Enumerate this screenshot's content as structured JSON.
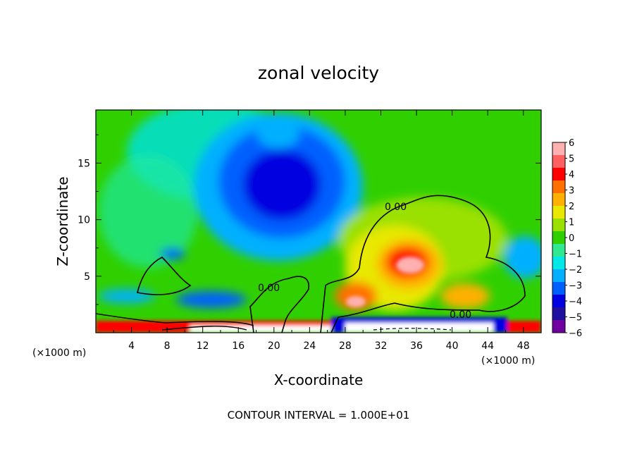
{
  "chart_data": {
    "type": "heatmap",
    "title": "zonal velocity",
    "xlabel": "X-coordinate",
    "ylabel": "Z-coordinate",
    "x_unit": "(×1000 m)",
    "y_unit": "(×1000 m)",
    "xlim": [
      0,
      50
    ],
    "ylim": [
      0,
      19.7
    ],
    "x_ticks": [
      4,
      8,
      12,
      16,
      20,
      24,
      28,
      32,
      36,
      40,
      44,
      48
    ],
    "y_ticks": [
      5,
      10,
      15
    ],
    "colorbar": {
      "levels": [
        6,
        5,
        4,
        3,
        2,
        1,
        0,
        -1,
        -2,
        -3,
        -4,
        -5,
        -6
      ],
      "labels": [
        "6",
        "5",
        "4",
        "3",
        "2",
        "1",
        "0",
        "−1",
        "−2",
        "−3",
        "−4",
        "−5",
        "−6"
      ],
      "colors": [
        "#ffb0b0",
        "#ff6060",
        "#ff0000",
        "#ff7000",
        "#ffb000",
        "#e8e800",
        "#9ae000",
        "#30d000",
        "#30e890",
        "#00e8e8",
        "#00b0ff",
        "#0060ff",
        "#0000e0",
        "#2010a0",
        "#7000a0"
      ]
    },
    "contour_label": "0.00",
    "contour_interval": "CONTOUR INTERVAL = 1.000E+01",
    "features": [
      {
        "name": "negative-jet-core",
        "x": 21,
        "z": 12.5,
        "value": -5
      },
      {
        "name": "positive-maximum",
        "x": 35.5,
        "z": 6,
        "value": 6
      },
      {
        "name": "positive-secondary",
        "x": 29.5,
        "z": 2.8,
        "value": 5
      },
      {
        "name": "positive-surface-layer",
        "x": 25,
        "z": 0.4,
        "value": 6
      },
      {
        "name": "negative-surface-layer",
        "x": 40,
        "z": 0.4,
        "value": -5
      }
    ]
  }
}
